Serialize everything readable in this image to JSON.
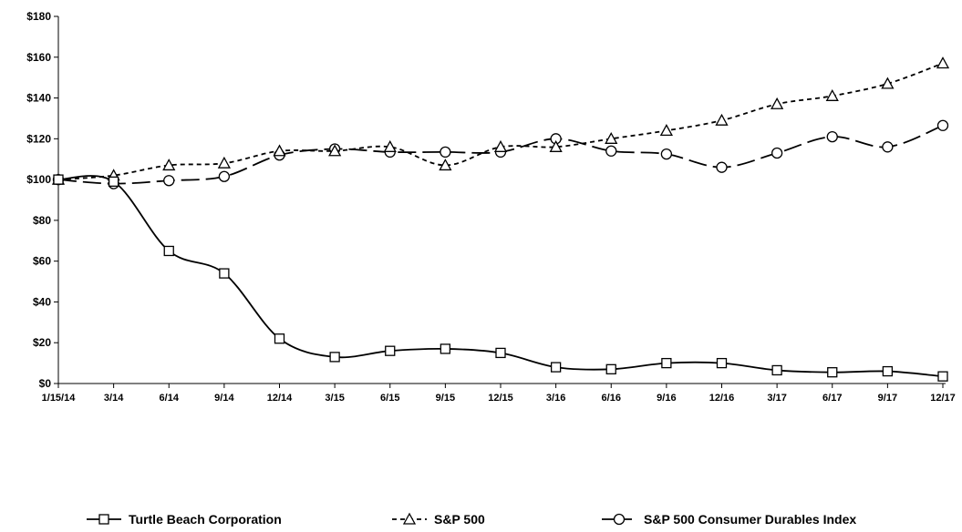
{
  "chart_data": {
    "type": "line",
    "title": "",
    "xlabel": "",
    "ylabel": "",
    "ylim": [
      0,
      180
    ],
    "y_ticks": [
      "$0",
      "$20",
      "$40",
      "$60",
      "$80",
      "$100",
      "$120",
      "$140",
      "$160",
      "$180"
    ],
    "categories": [
      "1/15/14",
      "3/14",
      "6/14",
      "9/14",
      "12/14",
      "3/15",
      "6/15",
      "9/15",
      "12/15",
      "3/16",
      "6/16",
      "9/16",
      "12/16",
      "3/17",
      "6/17",
      "9/17",
      "12/17"
    ],
    "grid": false,
    "legend_position": "bottom",
    "series": [
      {
        "name": "Turtle Beach Corporation",
        "marker": "square",
        "line_style": "solid",
        "color": "#000000",
        "values": [
          100,
          99,
          65,
          54,
          22,
          13,
          16,
          17,
          15,
          8,
          7,
          10,
          10,
          6.5,
          5.5,
          6,
          3.5
        ]
      },
      {
        "name": "S&P 500",
        "marker": "triangle",
        "line_style": "short-dash",
        "color": "#000000",
        "values": [
          100,
          102,
          107,
          108,
          114,
          114,
          116,
          107,
          116,
          116,
          120,
          124,
          129,
          137,
          141,
          147,
          157
        ]
      },
      {
        "name": "S&P 500 Consumer Durables Index",
        "marker": "circle",
        "line_style": "long-dash",
        "color": "#000000",
        "values": [
          100,
          98,
          99.5,
          101.5,
          112,
          115,
          113.5,
          113.5,
          113.5,
          120,
          114,
          112.5,
          106,
          113,
          121,
          116,
          126.5
        ]
      }
    ]
  }
}
